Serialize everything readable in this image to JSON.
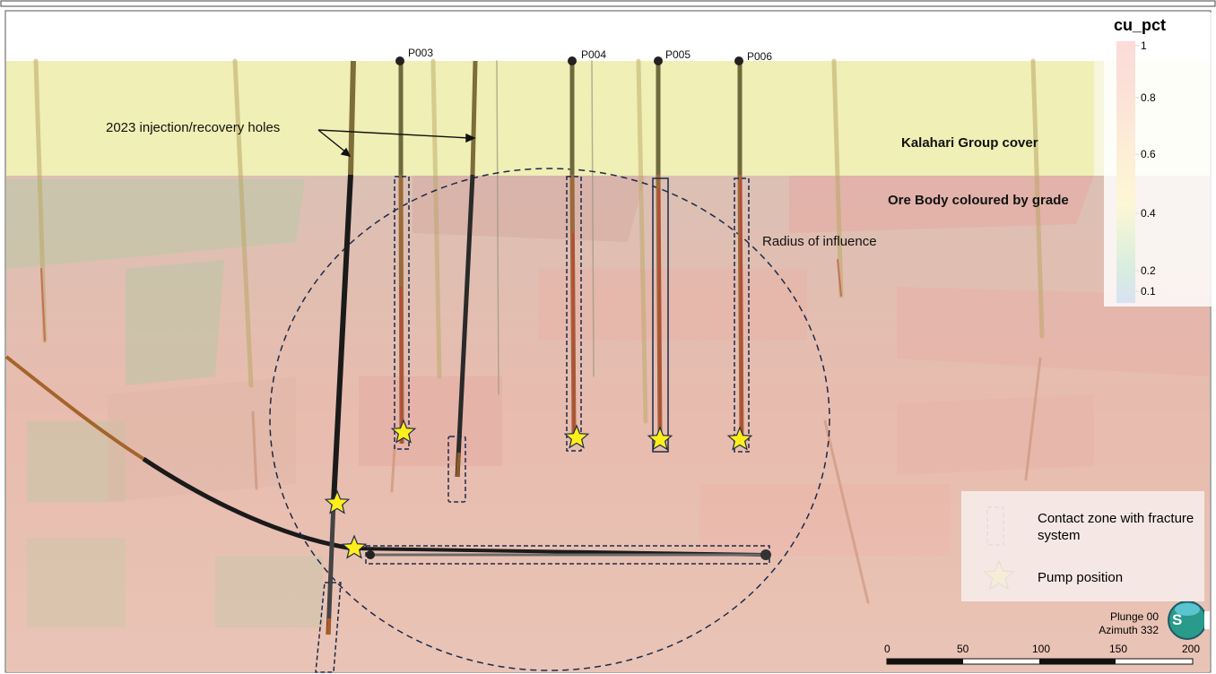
{
  "holes": [
    {
      "id": "P003",
      "tag": "P003"
    },
    {
      "id": "P004",
      "tag": "P004"
    },
    {
      "id": "P005",
      "tag": "P005"
    },
    {
      "id": "P006",
      "tag": "P006"
    }
  ],
  "annotations": {
    "injection_holes": "2023 injection/recovery holes",
    "cover": "Kalahari Group cover",
    "ore_body": "Ore Body coloured by grade",
    "radius": "Radius of influence"
  },
  "colorbar": {
    "title": "cu_pct",
    "ticks": [
      "1",
      "0.8",
      "0.6",
      "0.4",
      "0.2",
      "0.1"
    ],
    "colors": [
      "#e53a2f",
      "#ef6a22",
      "#f6a21d",
      "#f3d21c",
      "#2aa04a",
      "#2a5cb8"
    ]
  },
  "key": {
    "contact_zone": "Contact zone with fracture system",
    "pump": "Pump position"
  },
  "view": {
    "plunge": "Plunge 00",
    "azimuth": "Azimuth 332"
  },
  "scale_bar": {
    "ticks": [
      "0",
      "50",
      "100",
      "150",
      "200"
    ]
  },
  "badge": {
    "text": "S"
  },
  "colors": {
    "cover": "#eeeeb0",
    "ore": "#e8b3a8",
    "star": "#ffee1a",
    "dashed": "#1d2a4a"
  }
}
